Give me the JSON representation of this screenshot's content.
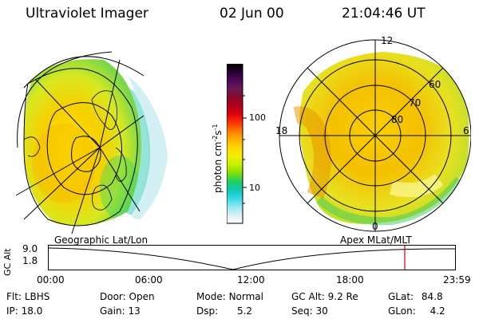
{
  "header": {
    "title": "Ultraviolet Imager",
    "date": "02 Jun 00",
    "time": "21:04:46 UT"
  },
  "left_panel": {
    "caption": "Geographic Lat/Lon"
  },
  "right_panel": {
    "caption": "Apex MLat/MLT",
    "mlt_labels": {
      "top": "12",
      "left": "18",
      "right": "6",
      "bottom": "0"
    },
    "lat_labels": [
      "60",
      "70",
      "80"
    ]
  },
  "colorbar": {
    "unit_main": "photon cm",
    "unit_exp1": "-2",
    "unit_s": "s",
    "unit_exp2": "-1",
    "tick_labels": [
      "100",
      "10"
    ],
    "colors": [
      "#000000",
      "#2a0033",
      "#4b0a5a",
      "#6a1a55",
      "#8a0a2a",
      "#b0001a",
      "#e00010",
      "#ff3000",
      "#ff7a00",
      "#ffb000",
      "#ffd800",
      "#f0f000",
      "#c8f000",
      "#80e000",
      "#20d060",
      "#10c8b0",
      "#30d8e8",
      "#90e8f0",
      "#d8f0f4",
      "#ffffff"
    ]
  },
  "altitude_plot": {
    "ylabel": "GC Alt",
    "yticks": [
      "9.0",
      "1.8"
    ],
    "xticks": [
      "00:00",
      "06:00",
      "12:00",
      "18:00",
      "23:59"
    ],
    "marker_color": "#cc0000"
  },
  "status": {
    "row1": [
      {
        "label": "Flt:",
        "value": "LBHS"
      },
      {
        "label": "Door:",
        "value": "Open"
      },
      {
        "label": "Mode:",
        "value": "Normal"
      },
      {
        "label": "GC Alt:",
        "value": "9.2 Re"
      },
      {
        "label": "GLat:",
        "value": "84.8"
      }
    ],
    "row2": [
      {
        "label": "IP:",
        "value": "18.0"
      },
      {
        "label": "Gain:",
        "value": "13"
      },
      {
        "label": "Dsp:",
        "value": "5.2"
      },
      {
        "label": "Seq:",
        "value": "30"
      },
      {
        "label": "GLon:",
        "value": "4.2"
      }
    ]
  }
}
